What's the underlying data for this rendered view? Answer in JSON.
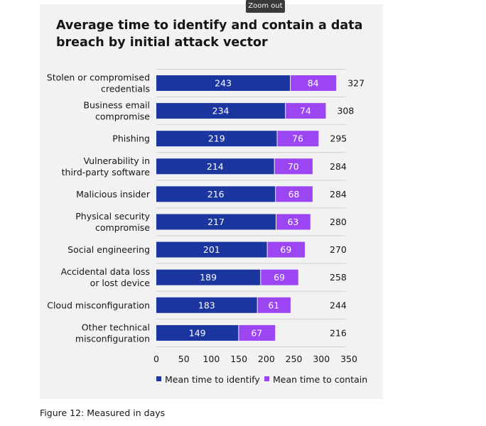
{
  "tooltip": {
    "zoom_label": "Zoom out"
  },
  "chart_data": {
    "type": "bar",
    "orientation": "horizontal",
    "stacked": true,
    "title": "Average time to identify and contain a data breach by initial attack vector",
    "categories": [
      [
        "Stolen or compromised",
        "credentials"
      ],
      [
        "Business email",
        "compromise"
      ],
      [
        "Phishing"
      ],
      [
        "Vulnerability in",
        "third-party software"
      ],
      [
        "Malicious insider"
      ],
      [
        "Physical security",
        "compromise"
      ],
      [
        "Social engineering"
      ],
      [
        "Accidental data loss",
        "or lost device"
      ],
      [
        "Cloud misconfiguration"
      ],
      [
        "Other technical",
        "misconfiguration"
      ]
    ],
    "series": [
      {
        "name": "Mean time to identify",
        "color": "#1c36a0",
        "values": [
          243,
          234,
          219,
          214,
          216,
          217,
          201,
          189,
          183,
          149
        ]
      },
      {
        "name": "Mean time to contain",
        "color": "#9b46f2",
        "values": [
          84,
          74,
          76,
          70,
          68,
          63,
          69,
          69,
          61,
          67
        ]
      }
    ],
    "totals": [
      327,
      308,
      295,
      284,
      284,
      280,
      270,
      258,
      244,
      216
    ],
    "xlim": [
      0,
      350
    ],
    "xticks": [
      0,
      50,
      100,
      150,
      200,
      250,
      300,
      350
    ],
    "legend_position": "bottom",
    "grid": "horizontal separators"
  },
  "caption": "Figure 12: Measured in days"
}
